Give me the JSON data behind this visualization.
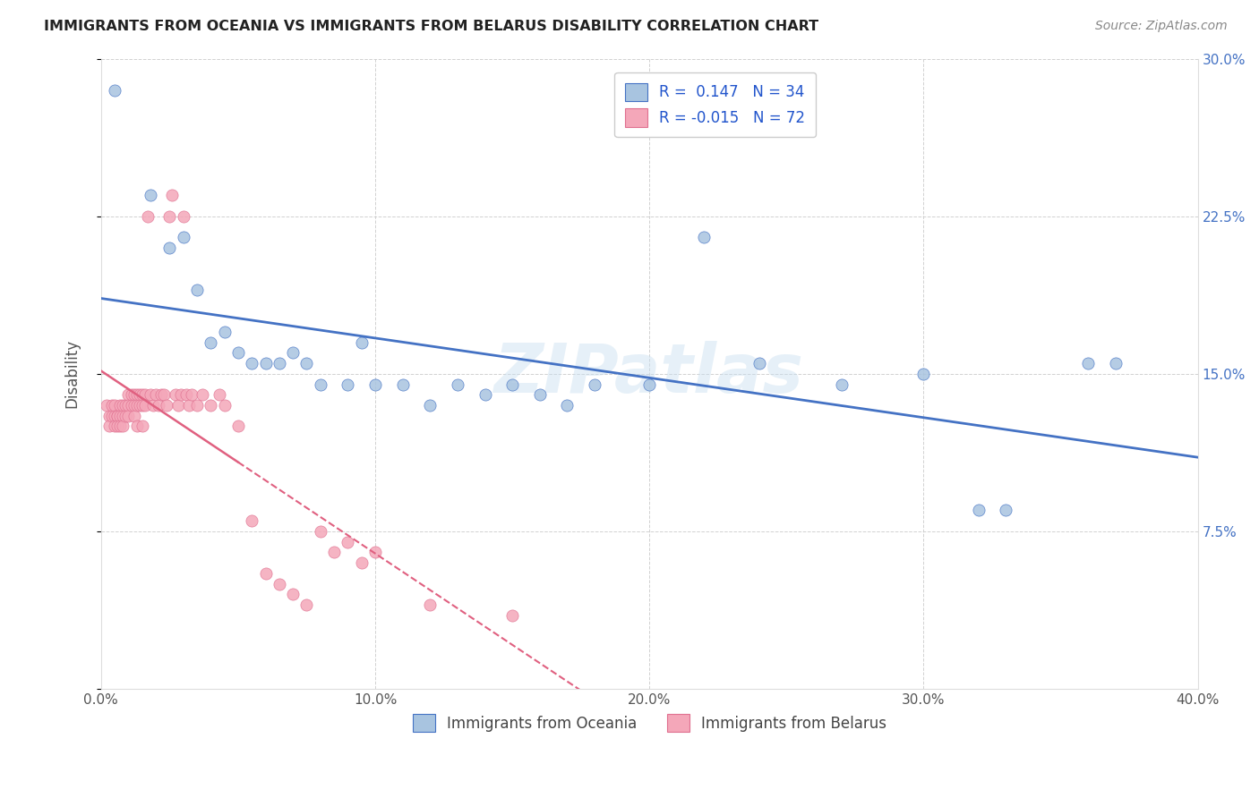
{
  "title": "IMMIGRANTS FROM OCEANIA VS IMMIGRANTS FROM BELARUS DISABILITY CORRELATION CHART",
  "source": "Source: ZipAtlas.com",
  "ylabel": "Disability",
  "x_min": 0.0,
  "x_max": 0.4,
  "y_min": 0.0,
  "y_max": 0.3,
  "x_ticks": [
    0.0,
    0.1,
    0.2,
    0.3,
    0.4
  ],
  "x_tick_labels": [
    "0.0%",
    "10.0%",
    "20.0%",
    "30.0%",
    "40.0%"
  ],
  "y_ticks": [
    0.0,
    0.075,
    0.15,
    0.225,
    0.3
  ],
  "y_tick_labels_right": [
    "",
    "7.5%",
    "15.0%",
    "22.5%",
    "30.0%"
  ],
  "legend_r_oceania": "0.147",
  "legend_n_oceania": "34",
  "legend_r_belarus": "-0.015",
  "legend_n_belarus": "72",
  "color_oceania": "#a8c4e0",
  "color_belarus": "#f4a7b9",
  "trendline_oceania": "#4472c4",
  "trendline_belarus": "#e06080",
  "watermark": "ZIPatlas",
  "oceania_x": [
    0.005,
    0.018,
    0.025,
    0.03,
    0.035,
    0.04,
    0.045,
    0.05,
    0.055,
    0.06,
    0.065,
    0.07,
    0.075,
    0.08,
    0.09,
    0.095,
    0.1,
    0.11,
    0.12,
    0.13,
    0.14,
    0.15,
    0.16,
    0.17,
    0.18,
    0.2,
    0.22,
    0.24,
    0.27,
    0.3,
    0.32,
    0.33,
    0.36,
    0.37
  ],
  "oceania_y": [
    0.285,
    0.235,
    0.21,
    0.215,
    0.19,
    0.165,
    0.17,
    0.16,
    0.155,
    0.155,
    0.155,
    0.16,
    0.155,
    0.145,
    0.145,
    0.165,
    0.145,
    0.145,
    0.135,
    0.145,
    0.14,
    0.145,
    0.14,
    0.135,
    0.145,
    0.145,
    0.215,
    0.155,
    0.145,
    0.15,
    0.085,
    0.085,
    0.155,
    0.155
  ],
  "belarus_x": [
    0.002,
    0.003,
    0.003,
    0.004,
    0.004,
    0.005,
    0.005,
    0.005,
    0.006,
    0.006,
    0.006,
    0.007,
    0.007,
    0.007,
    0.008,
    0.008,
    0.008,
    0.009,
    0.009,
    0.01,
    0.01,
    0.01,
    0.011,
    0.011,
    0.012,
    0.012,
    0.012,
    0.013,
    0.013,
    0.013,
    0.014,
    0.014,
    0.015,
    0.015,
    0.015,
    0.016,
    0.016,
    0.017,
    0.018,
    0.019,
    0.02,
    0.021,
    0.022,
    0.023,
    0.024,
    0.025,
    0.026,
    0.027,
    0.028,
    0.029,
    0.03,
    0.031,
    0.032,
    0.033,
    0.035,
    0.037,
    0.04,
    0.043,
    0.045,
    0.05,
    0.055,
    0.06,
    0.065,
    0.07,
    0.075,
    0.08,
    0.085,
    0.09,
    0.095,
    0.1,
    0.12,
    0.15
  ],
  "belarus_y": [
    0.135,
    0.13,
    0.125,
    0.13,
    0.135,
    0.135,
    0.13,
    0.125,
    0.13,
    0.13,
    0.125,
    0.135,
    0.13,
    0.125,
    0.135,
    0.13,
    0.125,
    0.135,
    0.13,
    0.14,
    0.135,
    0.13,
    0.14,
    0.135,
    0.14,
    0.135,
    0.13,
    0.14,
    0.135,
    0.125,
    0.14,
    0.135,
    0.14,
    0.135,
    0.125,
    0.14,
    0.135,
    0.225,
    0.14,
    0.135,
    0.14,
    0.135,
    0.14,
    0.14,
    0.135,
    0.225,
    0.235,
    0.14,
    0.135,
    0.14,
    0.225,
    0.14,
    0.135,
    0.14,
    0.135,
    0.14,
    0.135,
    0.14,
    0.135,
    0.125,
    0.08,
    0.055,
    0.05,
    0.045,
    0.04,
    0.075,
    0.065,
    0.07,
    0.06,
    0.065,
    0.04,
    0.035
  ]
}
